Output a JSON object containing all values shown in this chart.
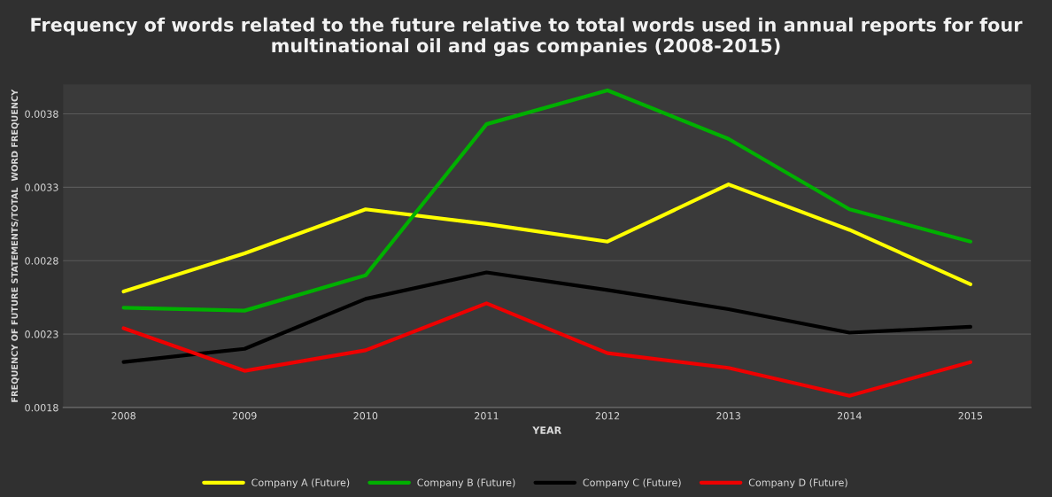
{
  "chart_data": {
    "type": "line",
    "title": "Frequency of words related to the future relative to total words used in annual reports for four multinational oil and gas companies (2008-2015)",
    "xlabel": "YEAR",
    "ylabel": "FREQUENCY OF FUTURE STATEMENTS/TOTAL  WORD FREQUENCY",
    "categories": [
      "2008",
      "2009",
      "2010",
      "2011",
      "2012",
      "2013",
      "2014",
      "2015"
    ],
    "series": [
      {
        "name": "Company A (Future)",
        "color": "#ffff00",
        "values": [
          0.00259,
          0.00285,
          0.00315,
          0.00305,
          0.00293,
          0.00332,
          0.00301,
          0.00264
        ]
      },
      {
        "name": "Company B (Future)",
        "color": "#00b000",
        "values": [
          0.00248,
          0.00246,
          0.0027,
          0.00373,
          0.00396,
          0.00363,
          0.00315,
          0.00293
        ]
      },
      {
        "name": "Company C (Future)",
        "color": "#000000",
        "values": [
          0.00211,
          0.0022,
          0.00254,
          0.00272,
          0.0026,
          0.00247,
          0.00231,
          0.00235
        ]
      },
      {
        "name": "Company D (Future)",
        "color": "#ee0000",
        "values": [
          0.00234,
          0.00205,
          0.00219,
          0.00251,
          0.00217,
          0.00207,
          0.00188,
          0.00211
        ]
      }
    ],
    "ylim": [
      0.0018,
      0.004
    ],
    "yticks": [
      0.0018,
      0.0023,
      0.0028,
      0.0033,
      0.0038
    ],
    "grid": "y",
    "legend": "bottom",
    "marker": "none",
    "line_style": "solid"
  }
}
